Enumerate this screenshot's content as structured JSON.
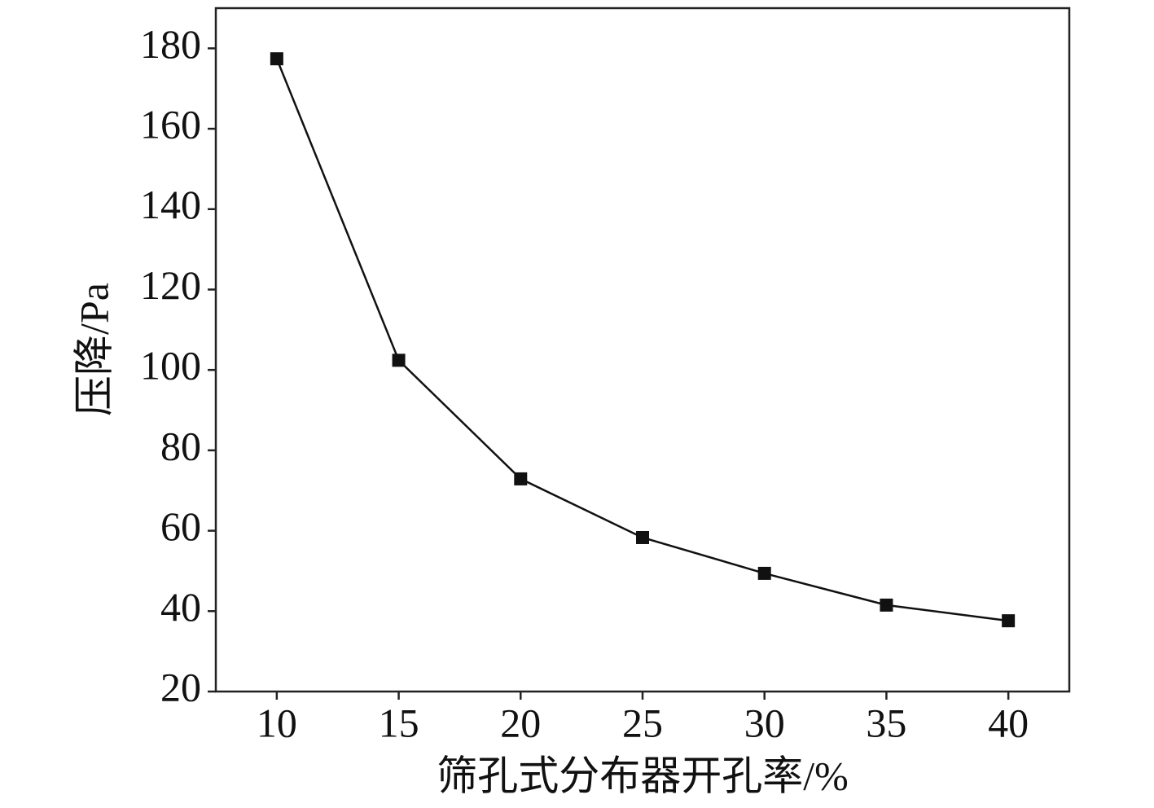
{
  "chart_data": {
    "type": "line",
    "x_label": "筛孔式分布器开孔率/%",
    "y_label": "压降/Pa",
    "x": [
      10,
      15,
      20,
      25,
      30,
      35,
      40
    ],
    "series": [
      {
        "name": "压降",
        "color": "#111111",
        "values": [
          177.4,
          102.4,
          72.9,
          58.3,
          49.4,
          41.5,
          37.6
        ]
      }
    ],
    "xlim": [
      7.5,
      42.5
    ],
    "xticks": [
      10,
      15,
      20,
      25,
      30,
      35,
      40
    ],
    "ylim": [
      20,
      190
    ],
    "yticks": [
      20,
      40,
      60,
      80,
      100,
      120,
      140,
      160,
      180
    ],
    "grid": false,
    "legend": false
  }
}
